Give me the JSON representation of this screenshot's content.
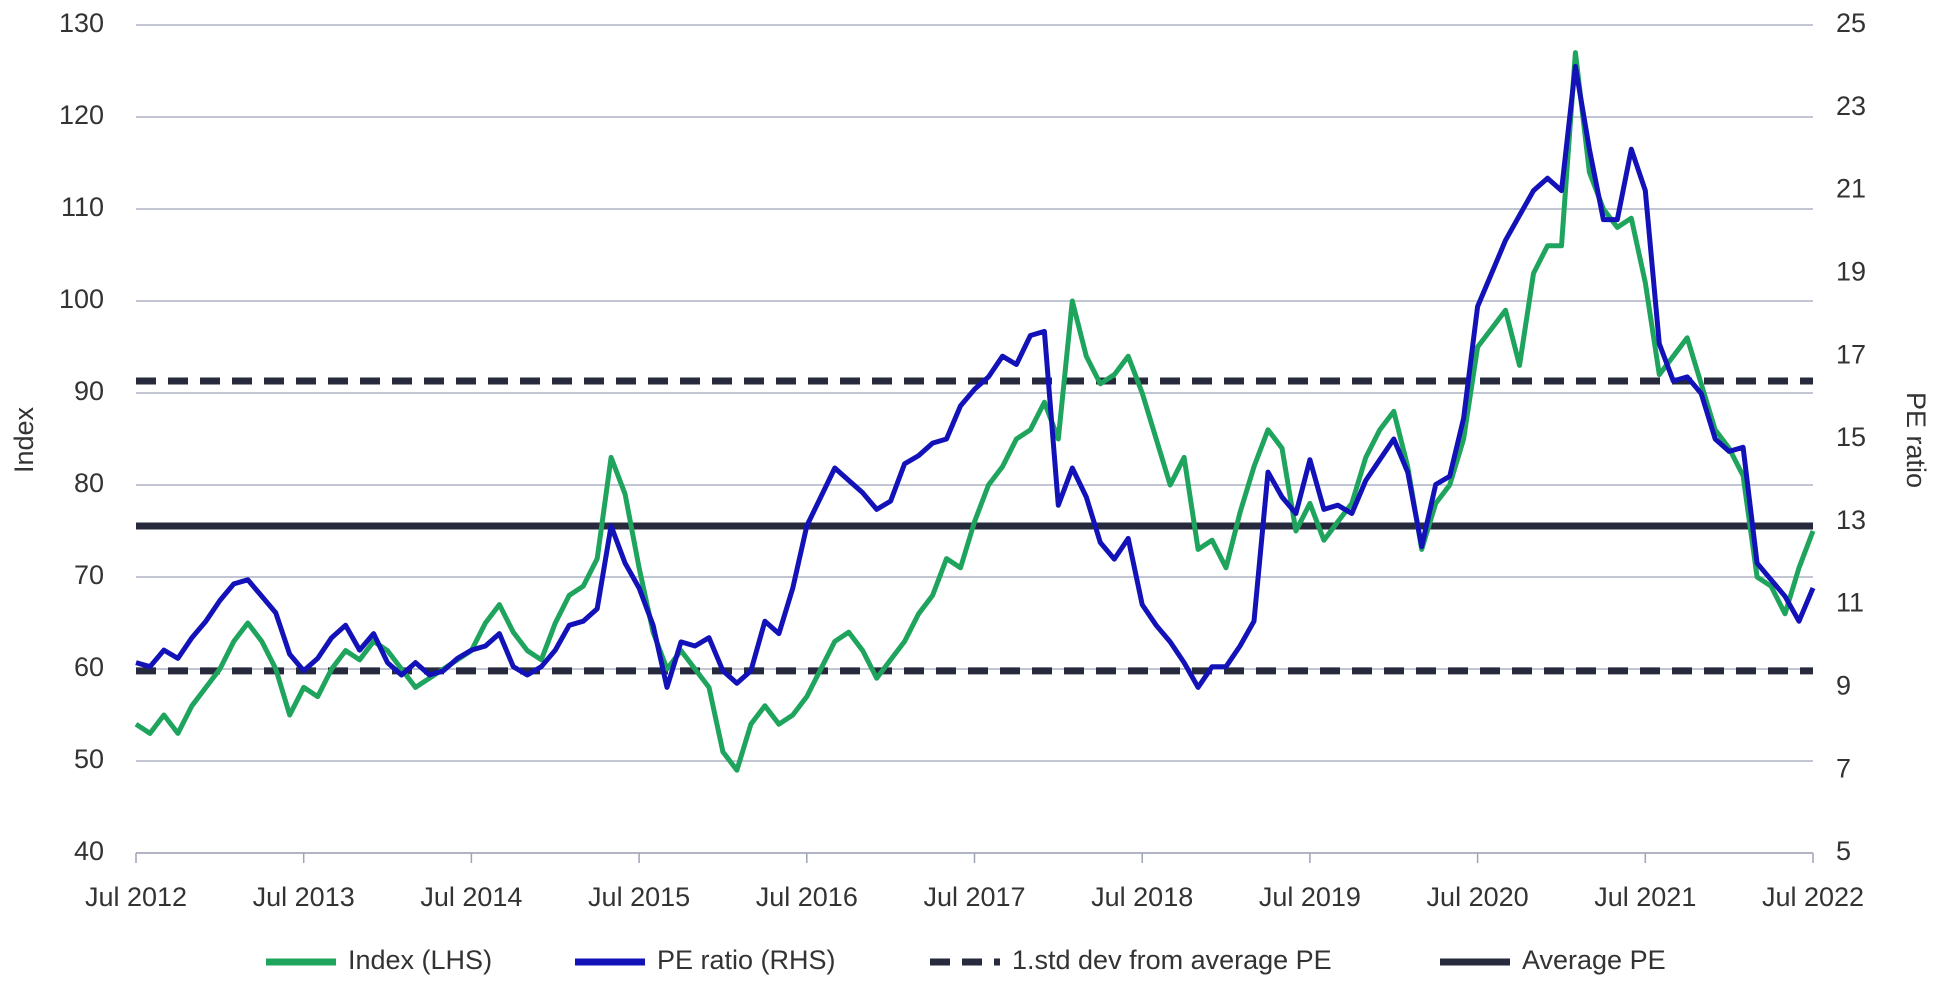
{
  "chart_data": {
    "type": "line",
    "ylabel": "Index",
    "y2label": "PE ratio",
    "xlim": [
      "2012-07",
      "2022-07"
    ],
    "xticks": [
      {
        "value": "2012-07",
        "label": "Jul 2012"
      },
      {
        "value": "2013-07",
        "label": "Jul 2013"
      },
      {
        "value": "2014-07",
        "label": "Jul 2014"
      },
      {
        "value": "2015-07",
        "label": "Jul 2015"
      },
      {
        "value": "2016-07",
        "label": "Jul 2016"
      },
      {
        "value": "2017-07",
        "label": "Jul 2017"
      },
      {
        "value": "2018-07",
        "label": "Jul 2018"
      },
      {
        "value": "2019-07",
        "label": "Jul 2019"
      },
      {
        "value": "2020-07",
        "label": "Jul 2020"
      },
      {
        "value": "2021-07",
        "label": "Jul 2021"
      },
      {
        "value": "2022-07",
        "label": "Jul 2022"
      }
    ],
    "ylim": [
      40,
      130
    ],
    "yticks": [
      40,
      50,
      60,
      70,
      80,
      90,
      100,
      110,
      120,
      130
    ],
    "y2lim": [
      5,
      25
    ],
    "y2ticks": [
      5,
      7,
      9,
      11,
      13,
      15,
      17,
      19,
      21,
      23,
      25
    ],
    "grid": true,
    "x": [
      "2012-07",
      "2012-08",
      "2012-09",
      "2012-10",
      "2012-11",
      "2012-12",
      "2013-01",
      "2013-02",
      "2013-03",
      "2013-04",
      "2013-05",
      "2013-06",
      "2013-07",
      "2013-08",
      "2013-09",
      "2013-10",
      "2013-11",
      "2013-12",
      "2014-01",
      "2014-02",
      "2014-03",
      "2014-04",
      "2014-05",
      "2014-06",
      "2014-07",
      "2014-08",
      "2014-09",
      "2014-10",
      "2014-11",
      "2014-12",
      "2015-01",
      "2015-02",
      "2015-03",
      "2015-04",
      "2015-05",
      "2015-06",
      "2015-07",
      "2015-08",
      "2015-09",
      "2015-10",
      "2015-11",
      "2015-12",
      "2016-01",
      "2016-02",
      "2016-03",
      "2016-04",
      "2016-05",
      "2016-06",
      "2016-07",
      "2016-08",
      "2016-09",
      "2016-10",
      "2016-11",
      "2016-12",
      "2017-01",
      "2017-02",
      "2017-03",
      "2017-04",
      "2017-05",
      "2017-06",
      "2017-07",
      "2017-08",
      "2017-09",
      "2017-10",
      "2017-11",
      "2017-12",
      "2018-01",
      "2018-02",
      "2018-03",
      "2018-04",
      "2018-05",
      "2018-06",
      "2018-07",
      "2018-08",
      "2018-09",
      "2018-10",
      "2018-11",
      "2018-12",
      "2019-01",
      "2019-02",
      "2019-03",
      "2019-04",
      "2019-05",
      "2019-06",
      "2019-07",
      "2019-08",
      "2019-09",
      "2019-10",
      "2019-11",
      "2019-12",
      "2020-01",
      "2020-02",
      "2020-03",
      "2020-04",
      "2020-05",
      "2020-06",
      "2020-07",
      "2020-08",
      "2020-09",
      "2020-10",
      "2020-11",
      "2020-12",
      "2021-01",
      "2021-02",
      "2021-03",
      "2021-04",
      "2021-05",
      "2021-06",
      "2021-07",
      "2021-08",
      "2021-09",
      "2021-10",
      "2021-11",
      "2021-12",
      "2022-01",
      "2022-02",
      "2022-03",
      "2022-04",
      "2022-05",
      "2022-06",
      "2022-07"
    ],
    "series": [
      {
        "name": "Index (LHS)",
        "color": "#1fa45e",
        "axis": "y",
        "values": [
          54,
          53,
          55,
          53,
          56,
          58,
          60,
          63,
          65,
          63,
          60,
          55,
          58,
          57,
          60,
          62,
          61,
          63,
          62,
          60,
          58,
          59,
          60,
          61,
          62,
          65,
          67,
          64,
          62,
          61,
          65,
          68,
          69,
          72,
          83,
          79,
          71,
          64,
          60,
          62,
          60,
          58,
          51,
          49,
          54,
          56,
          54,
          55,
          57,
          60,
          63,
          64,
          62,
          59,
          61,
          63,
          66,
          68,
          72,
          71,
          76,
          80,
          82,
          85,
          86,
          89,
          85,
          100,
          94,
          91,
          92,
          94,
          90,
          85,
          80,
          83,
          73,
          74,
          71,
          77,
          82,
          86,
          84,
          75,
          78,
          74,
          76,
          78,
          83,
          86,
          88,
          82,
          73,
          78,
          80,
          85,
          95,
          97,
          99,
          93,
          103,
          106,
          106,
          127,
          114,
          110,
          108,
          109,
          102,
          92,
          94,
          96,
          91,
          86,
          84,
          81,
          70,
          69,
          66,
          71,
          75
        ]
      },
      {
        "name": "PE ratio (RHS)",
        "color": "#1212b8",
        "axis": "y2",
        "values": [
          9.6,
          9.5,
          9.9,
          9.7,
          10.2,
          10.6,
          11.1,
          11.5,
          11.6,
          11.2,
          10.8,
          9.8,
          9.4,
          9.7,
          10.2,
          10.5,
          9.9,
          10.3,
          9.6,
          9.3,
          9.6,
          9.3,
          9.4,
          9.7,
          9.9,
          10.0,
          10.3,
          9.5,
          9.3,
          9.5,
          9.9,
          10.5,
          10.6,
          10.9,
          12.9,
          12.0,
          11.4,
          10.5,
          9.0,
          10.1,
          10.0,
          10.2,
          9.4,
          9.1,
          9.4,
          10.6,
          10.3,
          11.4,
          12.9,
          13.6,
          14.3,
          14.0,
          13.7,
          13.3,
          13.5,
          14.4,
          14.6,
          14.9,
          15.0,
          15.8,
          16.2,
          16.5,
          17.0,
          16.8,
          17.5,
          17.6,
          13.4,
          14.3,
          13.6,
          12.5,
          12.1,
          12.6,
          11.0,
          10.5,
          10.1,
          9.6,
          9.0,
          9.5,
          9.5,
          10.0,
          10.6,
          14.2,
          13.6,
          13.2,
          14.5,
          13.3,
          13.4,
          13.2,
          14.0,
          14.5,
          15.0,
          14.2,
          12.4,
          13.9,
          14.1,
          15.5,
          18.2,
          19.0,
          19.8,
          20.4,
          21.0,
          21.3,
          21.0,
          24.0,
          22.0,
          20.3,
          20.3,
          22.0,
          21.0,
          17.3,
          16.4,
          16.5,
          16.1,
          15.0,
          14.7,
          14.8,
          12.0,
          11.6,
          11.2,
          10.6,
          11.4
        ]
      }
    ],
    "reference_lines": [
      {
        "name": "1.std dev from average PE",
        "color": "#262a3c",
        "dashed": true,
        "axis": "y2",
        "values": [
          16.4,
          9.4
        ]
      },
      {
        "name": "Average PE",
        "color": "#262a3c",
        "dashed": false,
        "axis": "y2",
        "values": [
          12.9
        ]
      }
    ]
  }
}
